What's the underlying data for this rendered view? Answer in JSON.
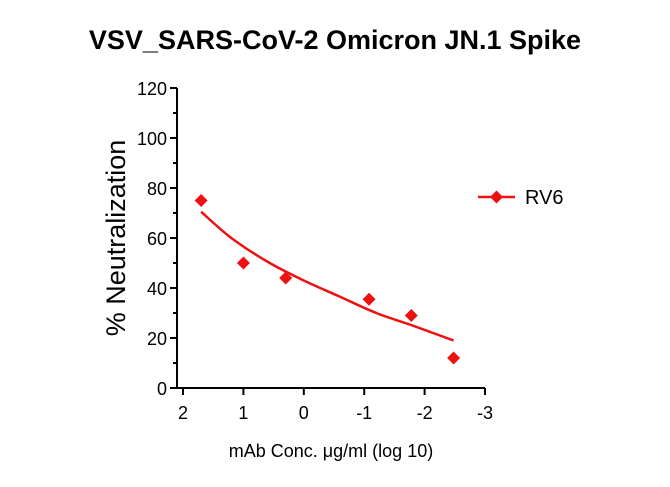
{
  "chart_data": {
    "type": "scatter",
    "title": "VSV_SARS-CoV-2 Omicron JN.1 Spike",
    "xlabel": "mAb Conc. μg/ml (log 10)",
    "ylabel": "% Neutralization",
    "xlim": [
      2,
      -3
    ],
    "ylim": [
      0,
      120
    ],
    "x_reversed": true,
    "xticks": [
      2,
      1,
      0,
      -1,
      -2,
      -3
    ],
    "xtick_labels": [
      "2",
      "1",
      "0",
      "-1",
      "-2",
      "-3"
    ],
    "yticks": [
      0,
      20,
      40,
      60,
      80,
      100,
      120
    ],
    "ytick_labels": [
      "0",
      "20",
      "40",
      "60",
      "80",
      "100",
      "120"
    ],
    "grid": false,
    "legend_position": "right",
    "series": [
      {
        "name": "RV6",
        "color": "#ee1111",
        "marker": "diamond",
        "x": [
          1.7,
          1.0,
          0.3,
          -1.08,
          -1.78,
          -2.48
        ],
        "y": [
          75,
          50,
          44,
          35.5,
          29,
          12
        ],
        "fit_curve": {
          "x": [
            1.7,
            1.2,
            0.6,
            0.0,
            -0.6,
            -1.2,
            -1.8,
            -2.48
          ],
          "y": [
            70.5,
            60,
            50.5,
            43,
            36.5,
            30,
            25,
            19
          ]
        }
      }
    ]
  }
}
